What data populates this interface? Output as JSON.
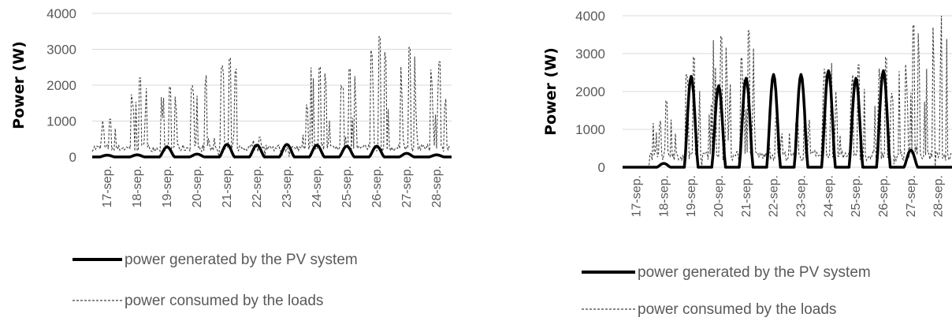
{
  "chart_data": [
    {
      "type": "line",
      "title": "",
      "xlabel": "",
      "ylabel": "Power (W)",
      "ylim": [
        0,
        4000
      ],
      "yticks": [
        "0",
        "1000",
        "2000",
        "3000",
        "4000"
      ],
      "grid": "horizontal",
      "legend_position": "bottom",
      "categories": [
        "17-sep.",
        "18-sep.",
        "19-sep.",
        "20-sep.",
        "21-sep.",
        "22-sep.",
        "23-sep.",
        "24-sep.",
        "25-sep.",
        "26-sep.",
        "27-sep.",
        "28-sep."
      ],
      "series": [
        {
          "name": "power generated by the PV system",
          "style": "solid-thick",
          "color": "#000000",
          "daily_peak": [
            50,
            60,
            280,
            80,
            350,
            330,
            350,
            330,
            300,
            300,
            100,
            60
          ]
        },
        {
          "name": "power consumed by the loads",
          "style": "dashed",
          "color": "#404040",
          "daily_peak": [
            1050,
            2200,
            1950,
            3200,
            2750,
            550,
            250,
            2500,
            2450,
            3350,
            3050,
            2650
          ],
          "baseline": 250
        }
      ]
    },
    {
      "type": "line",
      "title": "",
      "xlabel": "",
      "ylabel": "Power (W)",
      "ylim": [
        0,
        4000
      ],
      "yticks": [
        "0",
        "1000",
        "2000",
        "3000",
        "4000"
      ],
      "grid": "horizontal",
      "legend_position": "bottom",
      "categories": [
        "17-sep.",
        "18-sep.",
        "19-sep.",
        "20-sep.",
        "21-sep.",
        "22-sep.",
        "23-sep.",
        "24-sep.",
        "25-sep.",
        "26-sep.",
        "27-sep.",
        "28-sep."
      ],
      "series": [
        {
          "name": "power generated by the PV system",
          "style": "solid-thick",
          "color": "#000000",
          "daily_peak": [
            0,
            100,
            2400,
            2150,
            2350,
            2450,
            2450,
            2550,
            2350,
            2550,
            450,
            0
          ]
        },
        {
          "name": "power consumed by the loads",
          "style": "dashed",
          "color": "#404040",
          "daily_peak": [
            0,
            1750,
            2900,
            3450,
            3600,
            1300,
            1350,
            2750,
            2700,
            2900,
            3750,
            4000
          ],
          "baseline": 300
        }
      ]
    }
  ]
}
